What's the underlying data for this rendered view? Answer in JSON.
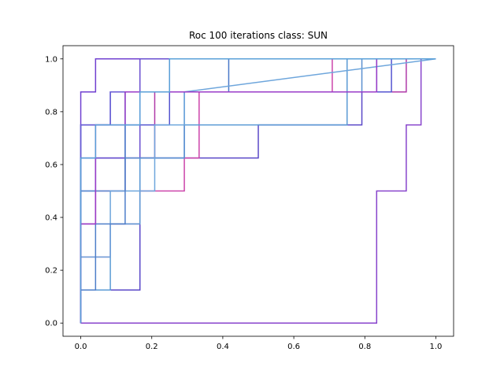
{
  "chart_data": {
    "type": "line",
    "title": "Roc 100 iterations class: SUN",
    "xlabel": "",
    "ylabel": "",
    "xlim": [
      -0.05,
      1.05
    ],
    "ylim": [
      -0.05,
      1.05
    ],
    "x_ticks": [
      0.0,
      0.2,
      0.4,
      0.6,
      0.8,
      1.0
    ],
    "y_ticks": [
      0.0,
      0.2,
      0.4,
      0.6,
      0.8,
      1.0
    ],
    "x_tick_labels": [
      "0.0",
      "0.2",
      "0.4",
      "0.6",
      "0.8",
      "1.0"
    ],
    "y_tick_labels": [
      "0.0",
      "0.2",
      "0.4",
      "0.6",
      "0.8",
      "1.0"
    ],
    "grid": false,
    "series": [
      {
        "color": "#8844cc",
        "x": [
          0,
          0.0833,
          0.0833,
          0.8333,
          0.8333,
          0.9167,
          0.9167,
          0.9583,
          0.9583,
          1.0
        ],
        "y": [
          0,
          0,
          0,
          0,
          0.5,
          0.5,
          0.75,
          0.75,
          1.0,
          1.0
        ]
      },
      {
        "color": "#7040d0",
        "x": [
          0,
          0,
          0.0417,
          0.0417,
          1.0
        ],
        "y": [
          0,
          0.875,
          0.875,
          1.0,
          1.0
        ]
      },
      {
        "color": "#5a48c8",
        "x": [
          0,
          0,
          0.1667,
          0.1667,
          0.5,
          0.5,
          0.7917,
          0.7917,
          0.8333,
          0.8333,
          1.0
        ],
        "y": [
          0,
          0.125,
          0.125,
          0.625,
          0.625,
          0.75,
          0.75,
          0.875,
          0.875,
          1.0,
          1.0
        ]
      },
      {
        "color": "#cc44aa",
        "x": [
          0,
          0,
          0.0833,
          0.0833,
          0.1667,
          0.1667,
          0.2917,
          0.2917,
          0.3333,
          0.3333,
          0.5,
          0.5,
          0.7083,
          0.7083,
          1.0
        ],
        "y": [
          0,
          0.25,
          0.25,
          0.375,
          0.375,
          0.5,
          0.5,
          0.625,
          0.625,
          0.875,
          0.875,
          0.875,
          0.875,
          1.0,
          1.0
        ]
      },
      {
        "color": "#b03aa8",
        "x": [
          0,
          0,
          0.0417,
          0.0417,
          0.125,
          0.125,
          0.2083,
          0.2083,
          0.9167,
          0.9167,
          1.0
        ],
        "y": [
          0,
          0.375,
          0.375,
          0.5,
          0.5,
          0.625,
          0.625,
          0.875,
          0.875,
          1.0,
          1.0
        ]
      },
      {
        "color": "#5555d0",
        "x": [
          0,
          0,
          0.0417,
          0.0417,
          0.125,
          0.125,
          0.25,
          0.25,
          0.5833,
          0.5833,
          0.875,
          0.875,
          1.0
        ],
        "y": [
          0,
          0.5,
          0.5,
          0.625,
          0.625,
          0.75,
          0.75,
          0.875,
          0.875,
          0.875,
          0.875,
          1.0,
          1.0
        ]
      },
      {
        "color": "#6a4fd0",
        "x": [
          0,
          0,
          0.1667,
          0.1667,
          0.1667,
          0.1667,
          0.7917,
          0.7917,
          1.0
        ],
        "y": [
          0,
          0.625,
          0.625,
          0.75,
          0.75,
          1.0,
          1.0,
          1.0,
          1.0
        ]
      },
      {
        "color": "#4a78c8",
        "x": [
          0,
          0,
          0.0833,
          0.0833,
          0.2083,
          0.2083,
          0.4167,
          0.4167,
          1.0
        ],
        "y": [
          0,
          0.75,
          0.75,
          0.875,
          0.875,
          0.875,
          0.875,
          1.0,
          1.0
        ]
      },
      {
        "color": "#5b9bd5",
        "x": [
          0,
          0,
          0.0833,
          0.0833,
          0.1667,
          0.1667,
          0.2917,
          0.2917,
          0.75,
          0.75,
          1.0
        ],
        "y": [
          0,
          0.125,
          0.125,
          0.375,
          0.375,
          0.625,
          0.625,
          0.75,
          0.75,
          1.0,
          1.0
        ]
      },
      {
        "color": "#5b8fd0",
        "x": [
          0,
          0,
          0.125,
          0.125,
          0.2917,
          0.2917,
          0.4167,
          0.4167,
          0.7917,
          0.7917,
          1.0
        ],
        "y": [
          0,
          0.5,
          0.5,
          0.625,
          0.625,
          0.875,
          0.875,
          0.875,
          0.875,
          1.0,
          1.0
        ]
      },
      {
        "color": "#6ea6dc",
        "x": [
          0,
          0,
          0.0833,
          0.0833,
          0.2083,
          0.2083,
          0.2917,
          0.2917,
          1.0
        ],
        "y": [
          0,
          0.25,
          0.25,
          0.5,
          0.5,
          0.75,
          0.75,
          0.875,
          1.0
        ]
      },
      {
        "color": "#4f7fc9",
        "x": [
          0,
          0,
          0.0417,
          0.0417,
          0.125,
          0.125,
          0.3333,
          0.3333,
          0.8333,
          0.8333,
          1.0
        ],
        "y": [
          0,
          0.125,
          0.125,
          0.375,
          0.375,
          0.875,
          0.875,
          0.875,
          0.875,
          1.0,
          1.0
        ]
      },
      {
        "color": "#6a5ad6",
        "x": [
          0,
          0,
          0.0833,
          0.0833,
          0.1667,
          0.1667,
          0.25,
          0.25,
          0.875,
          0.875,
          1.0
        ],
        "y": [
          0,
          0.75,
          0.75,
          0.875,
          0.875,
          0.875,
          0.875,
          1.0,
          1.0,
          1.0,
          1.0
        ]
      },
      {
        "color": "#9a3cc8",
        "x": [
          0,
          0,
          0.0417,
          0.0417,
          0.125,
          0.125,
          0.8333,
          0.8333,
          1.0
        ],
        "y": [
          0,
          0.375,
          0.375,
          0.75,
          0.75,
          0.875,
          0.875,
          1.0,
          1.0
        ]
      },
      {
        "color": "#5aa0d8",
        "x": [
          0,
          0,
          0.0417,
          0.0417,
          0.1667,
          0.1667,
          0.25,
          0.25,
          0.3333,
          0.3333,
          1.0
        ],
        "y": [
          0,
          0.625,
          0.625,
          0.75,
          0.75,
          0.875,
          0.875,
          1.0,
          1.0,
          1.0,
          1.0
        ]
      }
    ]
  }
}
